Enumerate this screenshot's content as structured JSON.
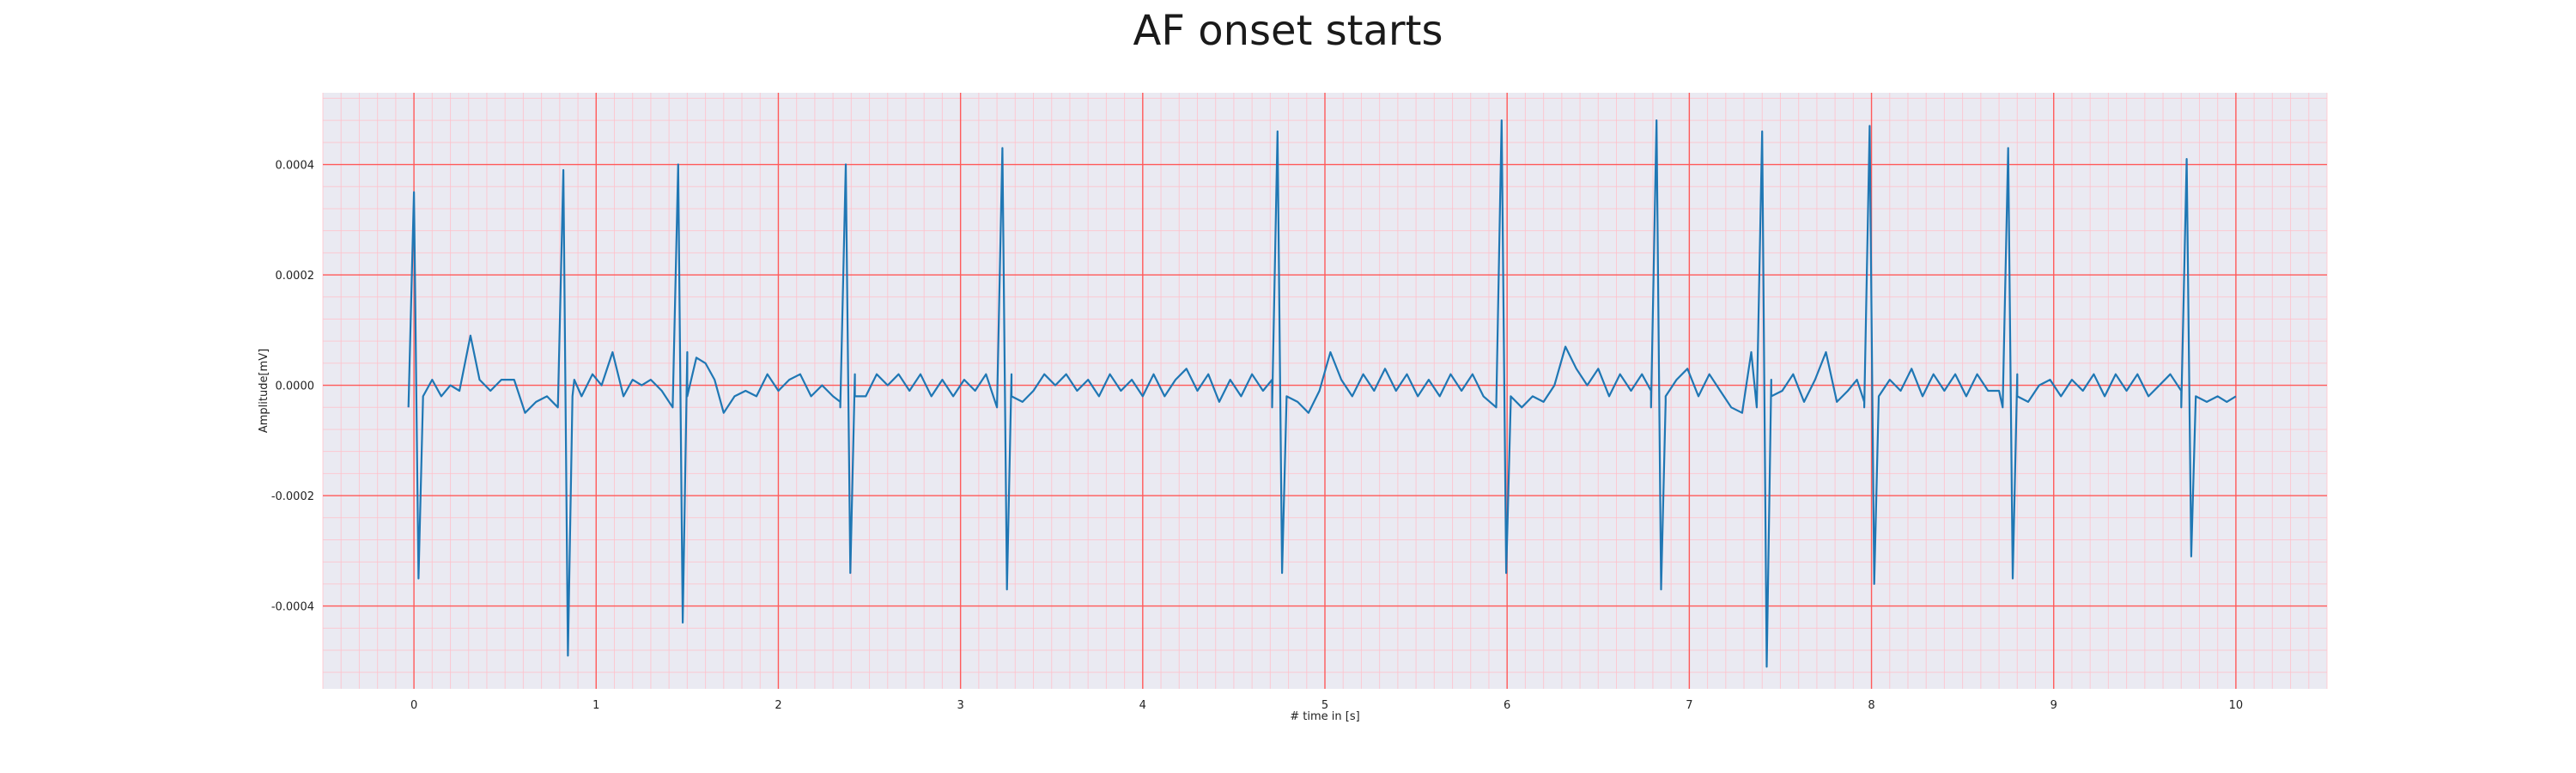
{
  "chart_data": {
    "type": "line",
    "title": "AF onset starts",
    "xlabel": "# time in [s]",
    "ylabel": "Amplitude[mV]",
    "xlim": [
      -0.5,
      10.5
    ],
    "ylim": [
      -0.00055,
      0.00053
    ],
    "xticks": [
      0,
      1,
      2,
      3,
      4,
      5,
      6,
      7,
      8,
      9,
      10
    ],
    "xtick_labels": [
      "0",
      "1",
      "2",
      "3",
      "4",
      "5",
      "6",
      "7",
      "8",
      "9",
      "10"
    ],
    "yticks": [
      0.0004,
      0.0002,
      0.0,
      -0.0002,
      -0.0004
    ],
    "ytick_labels": [
      "0.0004",
      "0.0002",
      "0.0000",
      "-0.0002",
      "-0.0004"
    ],
    "grid": true,
    "minor_grid": true,
    "series": [
      {
        "color": "#1f77b4",
        "beats": [
          {
            "t": 0.0,
            "r": 0.00035,
            "s": -0.00035
          },
          {
            "t": 0.82,
            "r": 0.00039,
            "s": -0.00049
          },
          {
            "t": 1.45,
            "r": 0.0004,
            "s": -0.00043
          },
          {
            "t": 2.37,
            "r": 0.0004,
            "s": -0.00034
          },
          {
            "t": 3.23,
            "r": 0.00043,
            "s": -0.00037
          },
          {
            "t": 4.74,
            "r": 0.00046,
            "s": -0.00034
          },
          {
            "t": 5.97,
            "r": 0.00048,
            "s": -0.00034
          },
          {
            "t": 6.82,
            "r": 0.00048,
            "s": -0.00037
          },
          {
            "t": 7.4,
            "r": 0.00046,
            "s": -0.00051
          },
          {
            "t": 7.99,
            "r": 0.00047,
            "s": -0.00036
          },
          {
            "t": 8.75,
            "r": 0.00043,
            "s": -0.00035
          },
          {
            "t": 9.73,
            "r": 0.00041,
            "s": -0.00031
          }
        ],
        "baseline_points": [
          [
            0.05,
            -2e-05
          ],
          [
            0.1,
            1e-05
          ],
          [
            0.15,
            -2e-05
          ],
          [
            0.2,
            0.0
          ],
          [
            0.25,
            -1e-05
          ],
          [
            0.31,
            9e-05
          ],
          [
            0.36,
            1e-05
          ],
          [
            0.42,
            -1e-05
          ],
          [
            0.48,
            1e-05
          ],
          [
            0.55,
            1e-05
          ],
          [
            0.61,
            -5e-05
          ],
          [
            0.67,
            -3e-05
          ],
          [
            0.73,
            -2e-05
          ],
          [
            0.78,
            -4e-05
          ],
          [
            0.88,
            1e-05
          ],
          [
            0.92,
            -2e-05
          ],
          [
            0.98,
            2e-05
          ],
          [
            1.03,
            0.0
          ],
          [
            1.09,
            6e-05
          ],
          [
            1.15,
            -2e-05
          ],
          [
            1.2,
            1e-05
          ],
          [
            1.25,
            0.0
          ],
          [
            1.3,
            1e-05
          ],
          [
            1.36,
            -1e-05
          ],
          [
            1.41,
            -3e-05
          ],
          [
            1.5,
            6e-05
          ],
          [
            1.55,
            5e-05
          ],
          [
            1.6,
            4e-05
          ],
          [
            1.65,
            1e-05
          ],
          [
            1.7,
            -5e-05
          ],
          [
            1.76,
            -2e-05
          ],
          [
            1.82,
            -1e-05
          ],
          [
            1.88,
            -2e-05
          ],
          [
            1.94,
            2e-05
          ],
          [
            2.0,
            -1e-05
          ],
          [
            2.06,
            1e-05
          ],
          [
            2.12,
            2e-05
          ],
          [
            2.18,
            -2e-05
          ],
          [
            2.24,
            0.0
          ],
          [
            2.3,
            -2e-05
          ],
          [
            2.34,
            -3e-05
          ],
          [
            2.42,
            2e-05
          ],
          [
            2.48,
            -2e-05
          ],
          [
            2.54,
            2e-05
          ],
          [
            2.6,
            0.0
          ],
          [
            2.66,
            2e-05
          ],
          [
            2.72,
            -1e-05
          ],
          [
            2.78,
            2e-05
          ],
          [
            2.84,
            -2e-05
          ],
          [
            2.9,
            1e-05
          ],
          [
            2.96,
            -2e-05
          ],
          [
            3.02,
            1e-05
          ],
          [
            3.08,
            -1e-05
          ],
          [
            3.14,
            2e-05
          ],
          [
            3.19,
            -2e-05
          ],
          [
            3.28,
            2e-05
          ],
          [
            3.34,
            -3e-05
          ],
          [
            3.4,
            -1e-05
          ],
          [
            3.46,
            2e-05
          ],
          [
            3.52,
            0.0
          ],
          [
            3.58,
            2e-05
          ],
          [
            3.64,
            -1e-05
          ],
          [
            3.7,
            1e-05
          ],
          [
            3.76,
            -2e-05
          ],
          [
            3.82,
            2e-05
          ],
          [
            3.88,
            -1e-05
          ],
          [
            3.94,
            1e-05
          ],
          [
            4.0,
            -2e-05
          ],
          [
            4.06,
            2e-05
          ],
          [
            4.12,
            -2e-05
          ],
          [
            4.18,
            1e-05
          ],
          [
            4.24,
            3e-05
          ],
          [
            4.3,
            -1e-05
          ],
          [
            4.36,
            2e-05
          ],
          [
            4.42,
            -3e-05
          ],
          [
            4.48,
            1e-05
          ],
          [
            4.54,
            -2e-05
          ],
          [
            4.6,
            2e-05
          ],
          [
            4.66,
            -1e-05
          ],
          [
            4.71,
            1e-05
          ],
          [
            4.79,
            -2e-05
          ],
          [
            4.85,
            -3e-05
          ],
          [
            4.91,
            -5e-05
          ],
          [
            4.97,
            -1e-05
          ],
          [
            5.03,
            6e-05
          ],
          [
            5.09,
            1e-05
          ],
          [
            5.15,
            -2e-05
          ],
          [
            5.21,
            2e-05
          ],
          [
            5.27,
            -1e-05
          ],
          [
            5.33,
            3e-05
          ],
          [
            5.39,
            -1e-05
          ],
          [
            5.45,
            2e-05
          ],
          [
            5.51,
            -2e-05
          ],
          [
            5.57,
            1e-05
          ],
          [
            5.63,
            -2e-05
          ],
          [
            5.69,
            2e-05
          ],
          [
            5.75,
            -1e-05
          ],
          [
            5.81,
            2e-05
          ],
          [
            5.87,
            -2e-05
          ],
          [
            5.93,
            -4e-05
          ],
          [
            6.02,
            -3e-05
          ],
          [
            6.08,
            -4e-05
          ],
          [
            6.14,
            -2e-05
          ],
          [
            6.2,
            -3e-05
          ],
          [
            6.26,
            0.0
          ],
          [
            6.32,
            7e-05
          ],
          [
            6.38,
            3e-05
          ],
          [
            6.44,
            0.0
          ],
          [
            6.5,
            3e-05
          ],
          [
            6.56,
            -2e-05
          ],
          [
            6.62,
            2e-05
          ],
          [
            6.68,
            -1e-05
          ],
          [
            6.74,
            2e-05
          ],
          [
            6.79,
            -1e-05
          ],
          [
            6.87,
            -3e-05
          ],
          [
            6.93,
            1e-05
          ],
          [
            6.99,
            3e-05
          ],
          [
            7.05,
            -2e-05
          ],
          [
            7.11,
            2e-05
          ],
          [
            7.17,
            -1e-05
          ],
          [
            7.23,
            -4e-05
          ],
          [
            7.29,
            -5e-05
          ],
          [
            7.34,
            6e-05
          ],
          [
            7.45,
            1e-05
          ],
          [
            7.51,
            -1e-05
          ],
          [
            7.57,
            2e-05
          ],
          [
            7.63,
            -3e-05
          ],
          [
            7.69,
            1e-05
          ],
          [
            7.75,
            6e-05
          ],
          [
            7.81,
            -3e-05
          ],
          [
            7.87,
            -1e-05
          ],
          [
            7.92,
            1e-05
          ],
          [
            7.96,
            -3e-05
          ],
          [
            8.04,
            -2e-05
          ],
          [
            8.1,
            1e-05
          ],
          [
            8.16,
            -1e-05
          ],
          [
            8.22,
            3e-05
          ],
          [
            8.28,
            -2e-05
          ],
          [
            8.34,
            2e-05
          ],
          [
            8.4,
            -1e-05
          ],
          [
            8.46,
            2e-05
          ],
          [
            8.52,
            -2e-05
          ],
          [
            8.58,
            2e-05
          ],
          [
            8.64,
            -1e-05
          ],
          [
            8.7,
            -1e-05
          ],
          [
            8.8,
            2e-05
          ],
          [
            8.86,
            -3e-05
          ],
          [
            8.92,
            0.0
          ],
          [
            8.98,
            1e-05
          ],
          [
            9.04,
            -2e-05
          ],
          [
            9.1,
            1e-05
          ],
          [
            9.16,
            -1e-05
          ],
          [
            9.22,
            2e-05
          ],
          [
            9.28,
            -2e-05
          ],
          [
            9.34,
            2e-05
          ],
          [
            9.4,
            -1e-05
          ],
          [
            9.46,
            2e-05
          ],
          [
            9.52,
            -2e-05
          ],
          [
            9.58,
            0.0
          ],
          [
            9.64,
            2e-05
          ],
          [
            9.7,
            -1e-05
          ],
          [
            9.78,
            -2e-05
          ],
          [
            9.84,
            -3e-05
          ],
          [
            9.9,
            -2e-05
          ],
          [
            9.95,
            -3e-05
          ],
          [
            10.0,
            -2e-05
          ]
        ]
      }
    ]
  }
}
